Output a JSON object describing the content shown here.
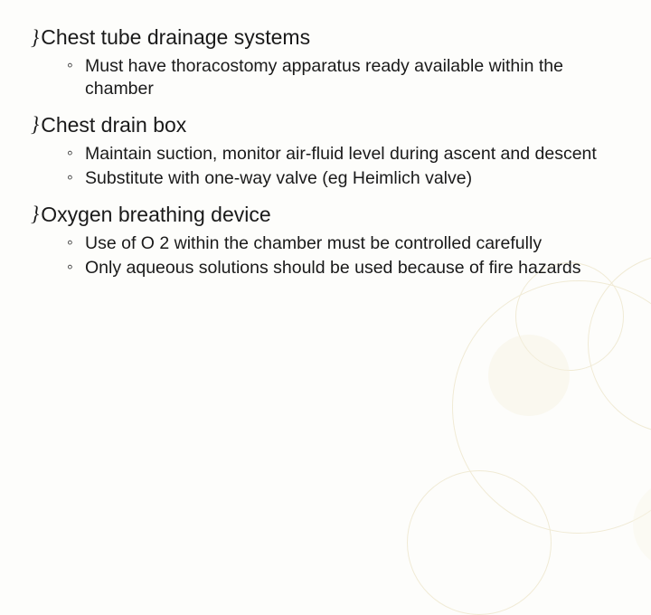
{
  "sections": [
    {
      "title": "Chest tube drainage systems",
      "items": [
        "Must have thoracostomy apparatus ready available within the chamber"
      ]
    },
    {
      "title": "Chest drain box",
      "items": [
        "Maintain suction, monitor air-fluid level during ascent and descent",
        "Substitute with one-way valve (eg Heimlich valve)"
      ]
    },
    {
      "title": "Oxygen breathing device",
      "items": [
        "Use of O 2 within the chamber must be controlled carefully",
        "Only aqueous solutions should be used because of fire hazards"
      ]
    }
  ],
  "bullet_symbol": "།"
}
